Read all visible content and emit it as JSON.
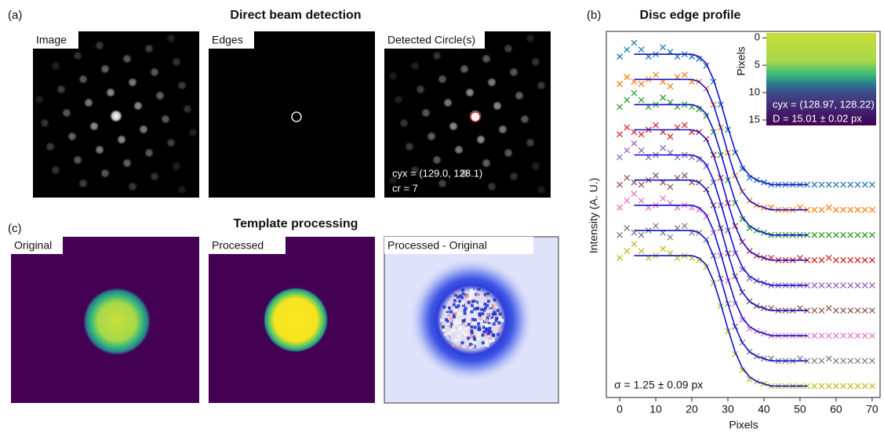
{
  "panels": {
    "a": {
      "label": "(a)",
      "title": "Direct beam detection",
      "images": [
        "Image",
        "Edges",
        "Detected Circle(s)"
      ],
      "annotations": [
        "cyx = (129.0, 128.1)",
        "cr = 7"
      ]
    },
    "b": {
      "label": "(b)"
    },
    "c": {
      "label": "(c)",
      "title": "Template processing",
      "images": [
        "Original",
        "Processed",
        "Processed - Original"
      ]
    }
  },
  "chart_data": {
    "type": "line",
    "title": "Disc edge profile",
    "xlabel": "Pixels",
    "ylabel": "Intensity (A. U.)",
    "xlim": [
      -3.7,
      72.2
    ],
    "xticks": [
      0,
      10,
      20,
      30,
      40,
      50,
      60,
      70
    ],
    "ylim": [
      0,
      16
    ],
    "annotation": "σ = 1.25 ± 0.09 px",
    "fit_color": "#1010d0",
    "x": [
      0,
      2,
      4,
      6,
      8,
      10,
      12,
      14,
      16,
      18,
      20,
      22,
      24,
      26,
      28,
      30,
      32,
      34,
      36,
      38,
      40,
      42,
      44,
      46,
      48,
      50,
      52,
      54,
      56,
      58,
      60,
      62,
      64,
      66,
      68,
      70
    ],
    "fit_x": [
      4,
      6,
      8,
      10,
      12,
      14,
      16,
      18,
      20,
      22,
      24,
      26,
      28,
      30,
      32,
      34,
      36,
      38,
      40,
      42,
      44,
      46,
      48,
      50,
      52
    ],
    "series": [
      {
        "color": "#1f77b4",
        "values": [
          14.9,
          15.2,
          15.5,
          15.2,
          14.9,
          15.0,
          15.3,
          15.1,
          14.9,
          15.0,
          14.9,
          14.8,
          14.5,
          13.8,
          12.8,
          11.7,
          10.7,
          10.0,
          9.6,
          9.5,
          9.4,
          9.3,
          9.3,
          9.3,
          9.3,
          9.3,
          9.3,
          9.3,
          9.3,
          9.3,
          9.3,
          9.3,
          9.3,
          9.3,
          9.3,
          9.3
        ],
        "fit_values": [
          15.0,
          15.0,
          15.0,
          15.0,
          15.0,
          15.0,
          15.0,
          15.0,
          15.0,
          14.9,
          14.6,
          13.9,
          12.9,
          11.8,
          10.8,
          10.1,
          9.7,
          9.5,
          9.4,
          9.3,
          9.3,
          9.3,
          9.3,
          9.3,
          9.3
        ]
      },
      {
        "color": "#ff7f0e",
        "values": [
          13.7,
          14.0,
          13.8,
          13.7,
          13.9,
          14.1,
          13.8,
          13.6,
          14.0,
          14.1,
          13.8,
          13.8,
          13.5,
          12.8,
          11.8,
          10.7,
          9.7,
          9.0,
          8.6,
          8.4,
          8.3,
          8.3,
          8.2,
          8.2,
          8.2,
          8.3,
          8.2,
          8.2,
          8.2,
          8.3,
          8.2,
          8.2,
          8.2,
          8.2,
          8.2,
          8.2
        ],
        "fit_values": [
          13.9,
          13.9,
          13.9,
          13.9,
          13.9,
          13.9,
          13.9,
          13.9,
          13.9,
          13.8,
          13.5,
          12.8,
          11.8,
          10.7,
          9.7,
          9.0,
          8.6,
          8.4,
          8.3,
          8.2,
          8.2,
          8.2,
          8.2,
          8.2,
          8.2
        ]
      },
      {
        "color": "#2ca02c",
        "values": [
          12.7,
          13.0,
          13.3,
          13.0,
          12.7,
          12.8,
          13.1,
          12.9,
          12.7,
          12.8,
          12.7,
          12.6,
          12.3,
          11.6,
          10.6,
          9.5,
          8.5,
          7.8,
          7.4,
          7.3,
          7.2,
          7.1,
          7.1,
          7.1,
          7.1,
          7.1,
          7.1,
          7.1,
          7.1,
          7.1,
          7.1,
          7.1,
          7.1,
          7.1,
          7.1,
          7.1
        ],
        "fit_values": [
          12.8,
          12.8,
          12.8,
          12.8,
          12.8,
          12.8,
          12.8,
          12.8,
          12.8,
          12.7,
          12.4,
          11.7,
          10.7,
          9.6,
          8.6,
          7.9,
          7.5,
          7.3,
          7.2,
          7.1,
          7.1,
          7.1,
          7.1,
          7.1,
          7.1
        ]
      },
      {
        "color": "#d62728",
        "values": [
          11.5,
          11.8,
          11.6,
          11.5,
          11.7,
          11.9,
          11.6,
          11.4,
          11.8,
          11.9,
          11.6,
          11.6,
          11.3,
          10.6,
          9.6,
          8.5,
          7.5,
          6.8,
          6.4,
          6.2,
          6.1,
          6.1,
          6.0,
          6.0,
          6.0,
          6.1,
          6.0,
          6.0,
          6.0,
          6.1,
          6.0,
          6.0,
          6.0,
          6.0,
          6.0,
          6.0
        ],
        "fit_values": [
          11.7,
          11.7,
          11.7,
          11.7,
          11.7,
          11.7,
          11.7,
          11.7,
          11.7,
          11.6,
          11.3,
          10.6,
          9.6,
          8.5,
          7.5,
          6.8,
          6.4,
          6.2,
          6.1,
          6.0,
          6.0,
          6.0,
          6.0,
          6.0,
          6.0
        ]
      },
      {
        "color": "#9467bd",
        "values": [
          10.5,
          10.8,
          11.1,
          10.8,
          10.5,
          10.6,
          10.9,
          10.7,
          10.5,
          10.6,
          10.5,
          10.4,
          10.1,
          9.4,
          8.4,
          7.3,
          6.3,
          5.6,
          5.2,
          5.1,
          5.0,
          4.9,
          4.9,
          4.9,
          4.9,
          4.9,
          4.9,
          4.9,
          4.9,
          4.9,
          4.9,
          4.9,
          4.9,
          4.9,
          4.9,
          4.9
        ],
        "fit_values": [
          10.6,
          10.6,
          10.6,
          10.6,
          10.6,
          10.6,
          10.6,
          10.6,
          10.6,
          10.5,
          10.2,
          9.5,
          8.5,
          7.4,
          6.4,
          5.7,
          5.3,
          5.1,
          5.0,
          4.9,
          4.9,
          4.9,
          4.9,
          4.9,
          4.9
        ]
      },
      {
        "color": "#8c564b",
        "values": [
          9.3,
          9.6,
          9.4,
          9.3,
          9.5,
          9.7,
          9.4,
          9.2,
          9.6,
          9.7,
          9.4,
          9.4,
          9.1,
          8.4,
          7.4,
          6.3,
          5.3,
          4.6,
          4.2,
          4.0,
          3.9,
          3.9,
          3.8,
          3.8,
          3.8,
          3.9,
          3.8,
          3.8,
          3.8,
          3.9,
          3.8,
          3.8,
          3.8,
          3.8,
          3.8,
          3.8
        ],
        "fit_values": [
          9.5,
          9.5,
          9.5,
          9.5,
          9.5,
          9.5,
          9.5,
          9.5,
          9.5,
          9.4,
          9.1,
          8.4,
          7.4,
          6.3,
          5.3,
          4.6,
          4.2,
          4.0,
          3.9,
          3.8,
          3.8,
          3.8,
          3.8,
          3.8,
          3.8
        ]
      },
      {
        "color": "#e377c2",
        "values": [
          8.3,
          8.6,
          8.9,
          8.6,
          8.3,
          8.4,
          8.7,
          8.5,
          8.3,
          8.4,
          8.3,
          8.2,
          7.9,
          7.2,
          6.2,
          5.1,
          4.1,
          3.4,
          3.0,
          2.9,
          2.8,
          2.7,
          2.7,
          2.7,
          2.7,
          2.7,
          2.7,
          2.7,
          2.7,
          2.7,
          2.7,
          2.7,
          2.7,
          2.7,
          2.7,
          2.7
        ],
        "fit_values": [
          8.4,
          8.4,
          8.4,
          8.4,
          8.4,
          8.4,
          8.4,
          8.4,
          8.4,
          8.3,
          8.0,
          7.3,
          6.3,
          5.2,
          4.2,
          3.5,
          3.1,
          2.9,
          2.8,
          2.7,
          2.7,
          2.7,
          2.7,
          2.7,
          2.7
        ]
      },
      {
        "color": "#7f7f7f",
        "values": [
          7.1,
          7.4,
          7.2,
          7.1,
          7.3,
          7.5,
          7.2,
          7.0,
          7.4,
          7.5,
          7.2,
          7.2,
          6.9,
          6.2,
          5.2,
          4.1,
          3.1,
          2.4,
          2.0,
          1.8,
          1.7,
          1.7,
          1.6,
          1.6,
          1.6,
          1.7,
          1.6,
          1.6,
          1.6,
          1.7,
          1.6,
          1.6,
          1.6,
          1.6,
          1.6,
          1.6
        ],
        "fit_values": [
          7.3,
          7.3,
          7.3,
          7.3,
          7.3,
          7.3,
          7.3,
          7.3,
          7.3,
          7.2,
          6.9,
          6.2,
          5.2,
          4.1,
          3.1,
          2.4,
          2.0,
          1.8,
          1.7,
          1.6,
          1.6,
          1.6,
          1.6,
          1.6,
          1.6
        ]
      },
      {
        "color": "#bcbd22",
        "values": [
          6.1,
          6.4,
          6.7,
          6.4,
          6.1,
          6.2,
          6.5,
          6.3,
          6.1,
          6.2,
          6.1,
          6.0,
          5.7,
          5.0,
          4.0,
          2.9,
          1.9,
          1.2,
          0.8,
          0.7,
          0.6,
          0.5,
          0.5,
          0.5,
          0.5,
          0.5,
          0.5,
          0.5,
          0.5,
          0.5,
          0.5,
          0.5,
          0.5,
          0.5,
          0.5,
          0.5
        ],
        "fit_values": [
          6.2,
          6.2,
          6.2,
          6.2,
          6.2,
          6.2,
          6.2,
          6.2,
          6.2,
          6.1,
          5.8,
          5.1,
          4.1,
          3.0,
          2.0,
          1.3,
          0.9,
          0.7,
          0.6,
          0.5,
          0.5,
          0.5,
          0.5,
          0.5,
          0.5
        ]
      }
    ],
    "inset": {
      "ylabel": "Pixels",
      "ylim": [
        -0.9,
        16
      ],
      "y_inverted": true,
      "yticks": [
        0,
        5,
        10,
        15
      ],
      "annotations": [
        "cyx = (128.97, 128.22)",
        "D = 15.01 ± 0.02 px"
      ]
    }
  }
}
